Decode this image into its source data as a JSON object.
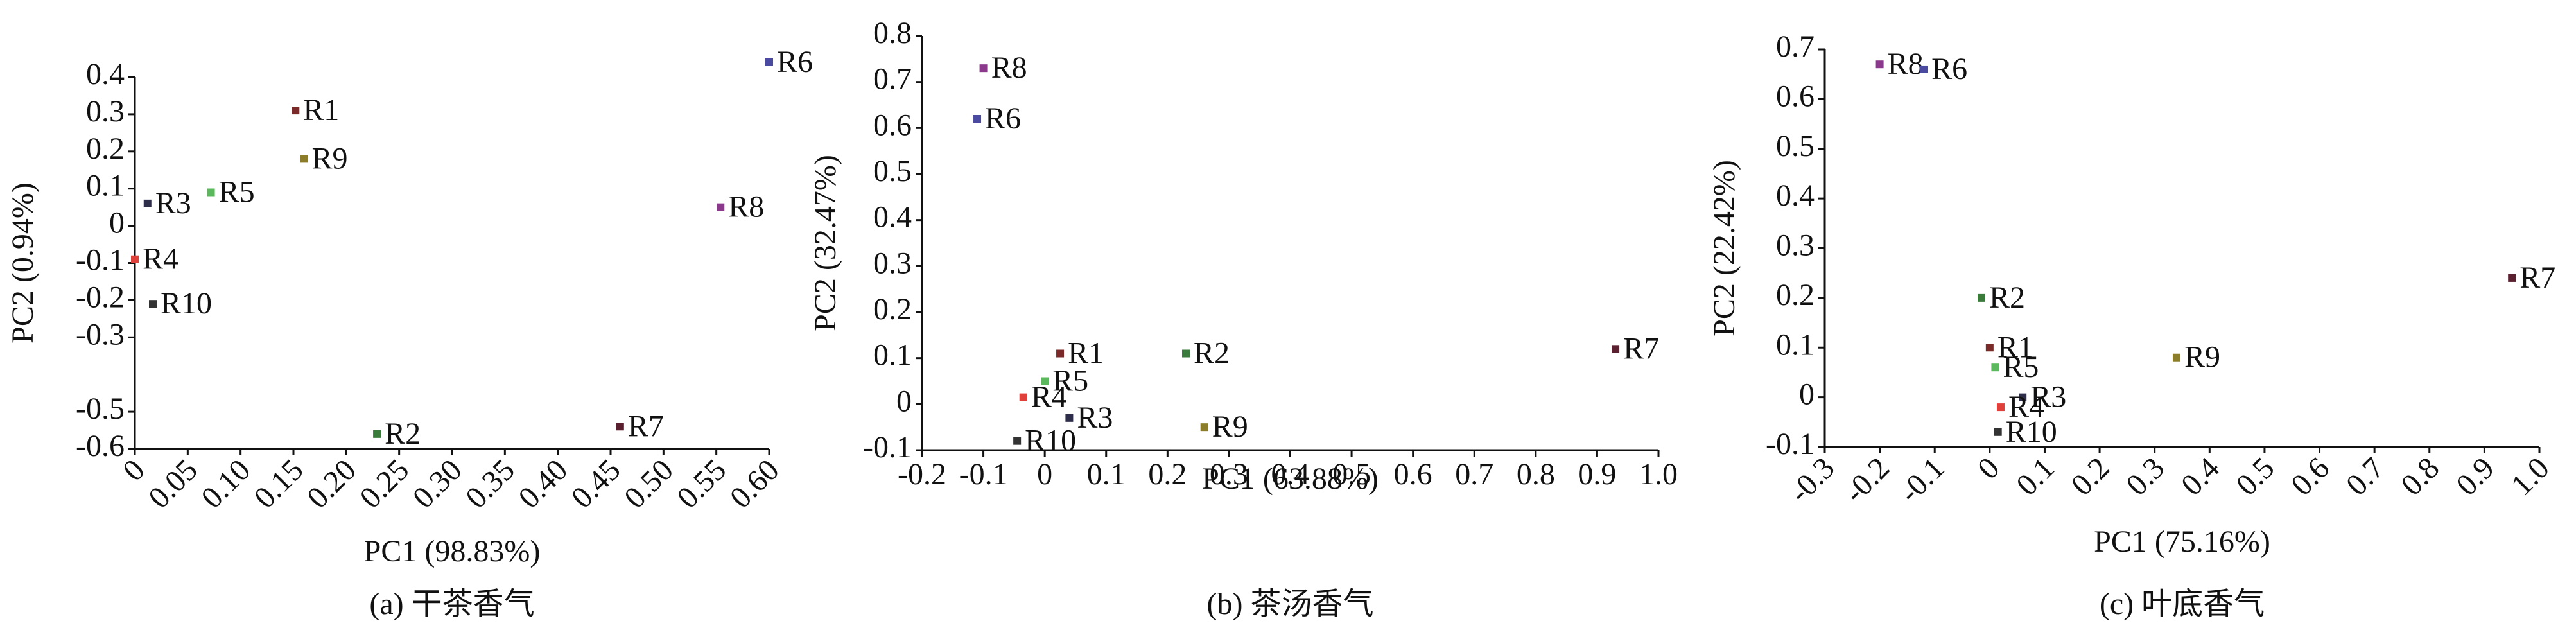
{
  "chart_data": [
    {
      "type": "scatter",
      "x_label": "PC1 (98.83%)",
      "y_label": "PC2 (0.94%)",
      "caption": "(a) 干茶香气",
      "xlim": [
        0,
        0.6
      ],
      "ylim": [
        -0.6,
        0.4
      ],
      "xticks": [
        0,
        0.05,
        {
          "value": 0.1,
          "label": "0.10"
        },
        0.15,
        {
          "value": 0.2,
          "label": "0.20"
        },
        0.25,
        {
          "value": 0.3,
          "label": "0.30"
        },
        0.35,
        {
          "value": 0.4,
          "label": "0.40"
        },
        0.45,
        {
          "value": 0.5,
          "label": "0.50"
        },
        0.55,
        {
          "value": 0.6,
          "label": "0.60"
        }
      ],
      "yticks": [
        0.4,
        0.3,
        0.2,
        0.1,
        0,
        -0.1,
        -0.2,
        -0.3,
        -0.5,
        -0.6
      ],
      "series": [
        {
          "name": "R1",
          "color": "#7b2a2a",
          "x": 0.152,
          "y": 0.31
        },
        {
          "name": "R9",
          "color": "#8b7d2a",
          "x": 0.16,
          "y": 0.18
        },
        {
          "name": "R3",
          "color": "#2e2e4a",
          "x": 0.012,
          "y": 0.06
        },
        {
          "name": "R5",
          "color": "#5cb85c",
          "x": 0.072,
          "y": 0.09
        },
        {
          "name": "R4",
          "color": "#e0403a",
          "x": 0,
          "y": -0.09
        },
        {
          "name": "R10",
          "color": "#333333",
          "x": 0.017,
          "y": -0.21
        },
        {
          "name": "R2",
          "color": "#3a7a3a",
          "x": 0.229,
          "y": -0.56
        },
        {
          "name": "R7",
          "color": "#5a2030",
          "x": 0.459,
          "y": -0.54
        },
        {
          "name": "R6",
          "color": "#4a4aa0",
          "x": 0.6,
          "y": 0.44
        },
        {
          "name": "R8",
          "color": "#8b3a8b",
          "x": 0.554,
          "y": 0.05
        }
      ]
    },
    {
      "type": "scatter",
      "x_label": "PC1 (63.88%)",
      "y_label": "PC2 (32.47%)",
      "caption": "(b) 茶汤香气",
      "xlim": [
        -0.2,
        1.0
      ],
      "ylim": [
        -0.1,
        0.8
      ],
      "xticks": [
        -0.2,
        -0.1,
        0,
        0.1,
        0.2,
        0.3,
        0.4,
        0.5,
        0.6,
        0.7,
        0.8,
        0.9,
        {
          "value": 1.0,
          "label": "1.0"
        }
      ],
      "yticks": [
        0.8,
        0.7,
        0.6,
        0.5,
        0.4,
        0.3,
        0.2,
        0.1,
        0,
        -0.1
      ],
      "series": [
        {
          "name": "R8",
          "color": "#8b3a8b",
          "x": -0.1,
          "y": 0.73
        },
        {
          "name": "R6",
          "color": "#4a4aa0",
          "x": -0.11,
          "y": 0.62
        },
        {
          "name": "R1",
          "color": "#7b2a2a",
          "x": 0.025,
          "y": 0.11
        },
        {
          "name": "R2",
          "color": "#3a7a3a",
          "x": 0.23,
          "y": 0.11
        },
        {
          "name": "R7",
          "color": "#5a2030",
          "x": 0.93,
          "y": 0.12
        },
        {
          "name": "R5",
          "color": "#5cb85c",
          "x": 0,
          "y": 0.05
        },
        {
          "name": "R4",
          "color": "#e0403a",
          "x": -0.035,
          "y": 0.015
        },
        {
          "name": "R3",
          "color": "#2e2e4a",
          "x": 0.04,
          "y": -0.03
        },
        {
          "name": "R10",
          "color": "#333333",
          "x": -0.045,
          "y": -0.08
        },
        {
          "name": "R9",
          "color": "#8b7d2a",
          "x": 0.26,
          "y": -0.05
        }
      ]
    },
    {
      "type": "scatter",
      "x_label": "PC1 (75.16%)",
      "y_label": "PC2 (22.42%)",
      "caption": "(c) 叶底香气",
      "xlim": [
        -0.3,
        1.0
      ],
      "ylim": [
        -0.1,
        0.7
      ],
      "xticks": [
        -0.3,
        -0.2,
        -0.1,
        0,
        0.1,
        0.2,
        0.3,
        0.4,
        0.5,
        0.6,
        0.7,
        0.8,
        0.9,
        {
          "value": 1.0,
          "label": "1.0"
        }
      ],
      "yticks": [
        0.7,
        0.6,
        0.5,
        0.4,
        0.3,
        0.2,
        0.1,
        0,
        -0.1
      ],
      "series": [
        {
          "name": "R8",
          "color": "#8b3a8b",
          "x": -0.2,
          "y": 0.67
        },
        {
          "name": "R6",
          "color": "#4a4aa0",
          "x": -0.12,
          "y": 0.66
        },
        {
          "name": "R7",
          "color": "#5a2030",
          "x": 0.95,
          "y": 0.24
        },
        {
          "name": "R2",
          "color": "#3a7a3a",
          "x": -0.015,
          "y": 0.2
        },
        {
          "name": "R1",
          "color": "#7b2a2a",
          "x": 0,
          "y": 0.1
        },
        {
          "name": "R5",
          "color": "#5cb85c",
          "x": 0.01,
          "y": 0.06
        },
        {
          "name": "R9",
          "color": "#8b7d2a",
          "x": 0.34,
          "y": 0.08
        },
        {
          "name": "R3",
          "color": "#2e2e4a",
          "x": 0.06,
          "y": 0
        },
        {
          "name": "R4",
          "color": "#e0403a",
          "x": 0.02,
          "y": -0.02
        },
        {
          "name": "R10",
          "color": "#333333",
          "x": 0.015,
          "y": -0.07
        }
      ]
    }
  ]
}
